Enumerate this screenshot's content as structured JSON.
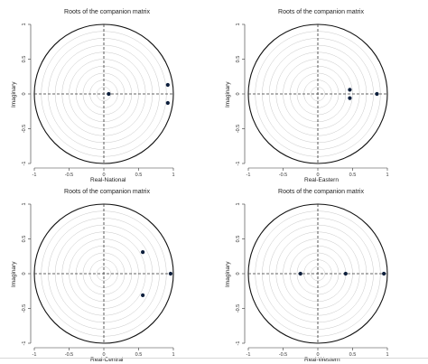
{
  "chart_data": [
    {
      "type": "scatter",
      "title": "Roots of the companion matrix",
      "xlabel": "Real-National",
      "ylabel": "Imaginary",
      "xlim": [
        -1,
        1
      ],
      "ylim": [
        -1,
        1
      ],
      "x_ticks": [
        "-1",
        "-0.5",
        "0",
        "0.5",
        "1"
      ],
      "y_ticks": [
        "-1",
        "-0.5",
        "0",
        "0.5",
        "1"
      ],
      "unit_circle": true,
      "grid_circles": true,
      "points": [
        {
          "re": 0.07,
          "im": 0.0
        },
        {
          "re": 0.92,
          "im": 0.13
        },
        {
          "re": 0.92,
          "im": -0.13
        }
      ]
    },
    {
      "type": "scatter",
      "title": "Roots of the companion matrix",
      "xlabel": "Real-Eastern",
      "ylabel": "Imaginary",
      "xlim": [
        -1,
        1
      ],
      "ylim": [
        -1,
        1
      ],
      "x_ticks": [
        "-1",
        "-0.5",
        "0",
        "0.5",
        "1"
      ],
      "y_ticks": [
        "-1",
        "-0.5",
        "0",
        "0.5",
        "1"
      ],
      "unit_circle": true,
      "grid_circles": true,
      "points": [
        {
          "re": 0.46,
          "im": 0.06
        },
        {
          "re": 0.46,
          "im": -0.06
        },
        {
          "re": 0.85,
          "im": 0.0
        }
      ]
    },
    {
      "type": "scatter",
      "title": "Roots of the companion matrix",
      "xlabel": "Real-Central",
      "ylabel": "Imaginary",
      "xlim": [
        -1,
        1
      ],
      "ylim": [
        -1,
        1
      ],
      "x_ticks": [
        "-1",
        "-0.5",
        "0",
        "0.5",
        "1"
      ],
      "y_ticks": [
        "-1",
        "-0.5",
        "0",
        "0.5",
        "1"
      ],
      "unit_circle": true,
      "grid_circles": true,
      "points": [
        {
          "re": 0.56,
          "im": 0.31
        },
        {
          "re": 0.56,
          "im": -0.31
        },
        {
          "re": 0.96,
          "im": 0.0
        }
      ]
    },
    {
      "type": "scatter",
      "title": "Roots of the companion matrix",
      "xlabel": "Real-Western",
      "ylabel": "Imaginary",
      "xlim": [
        -1,
        1
      ],
      "ylim": [
        -1,
        1
      ],
      "x_ticks": [
        "-1",
        "-0.5",
        "0",
        "0.5",
        "1"
      ],
      "y_ticks": [
        "-1",
        "-0.5",
        "0",
        "0.5",
        "1"
      ],
      "unit_circle": true,
      "grid_circles": true,
      "points": [
        {
          "re": -0.25,
          "im": 0.0
        },
        {
          "re": 0.4,
          "im": 0.0
        },
        {
          "re": 0.95,
          "im": 0.0
        }
      ]
    }
  ],
  "colors": {
    "point": "#0d1f3c",
    "axis": "#333333",
    "grid": "#c8c8c8",
    "dash": "#333333"
  }
}
